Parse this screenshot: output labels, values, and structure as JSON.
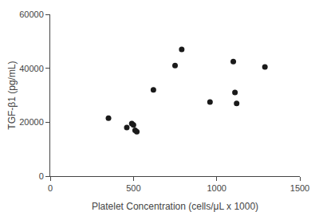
{
  "chart_data": {
    "type": "scatter",
    "x": [
      350,
      460,
      490,
      500,
      510,
      520,
      620,
      750,
      790,
      960,
      1100,
      1110,
      1120,
      1290
    ],
    "values": [
      21500,
      18000,
      19500,
      19000,
      17000,
      16500,
      32000,
      41000,
      47000,
      27500,
      42500,
      31000,
      27000,
      40500
    ],
    "xlabel": "Platelet Concentration (cells/μL x 1000)",
    "ylabel": "TGF-β1 (pg/mL)",
    "xlim": [
      0,
      1500
    ],
    "ylim": [
      0,
      60000
    ],
    "xticks": [
      0,
      500,
      1000,
      1500
    ],
    "yticks": [
      0,
      20000,
      40000,
      60000
    ],
    "color": "#1a1a1a",
    "grid": false
  }
}
